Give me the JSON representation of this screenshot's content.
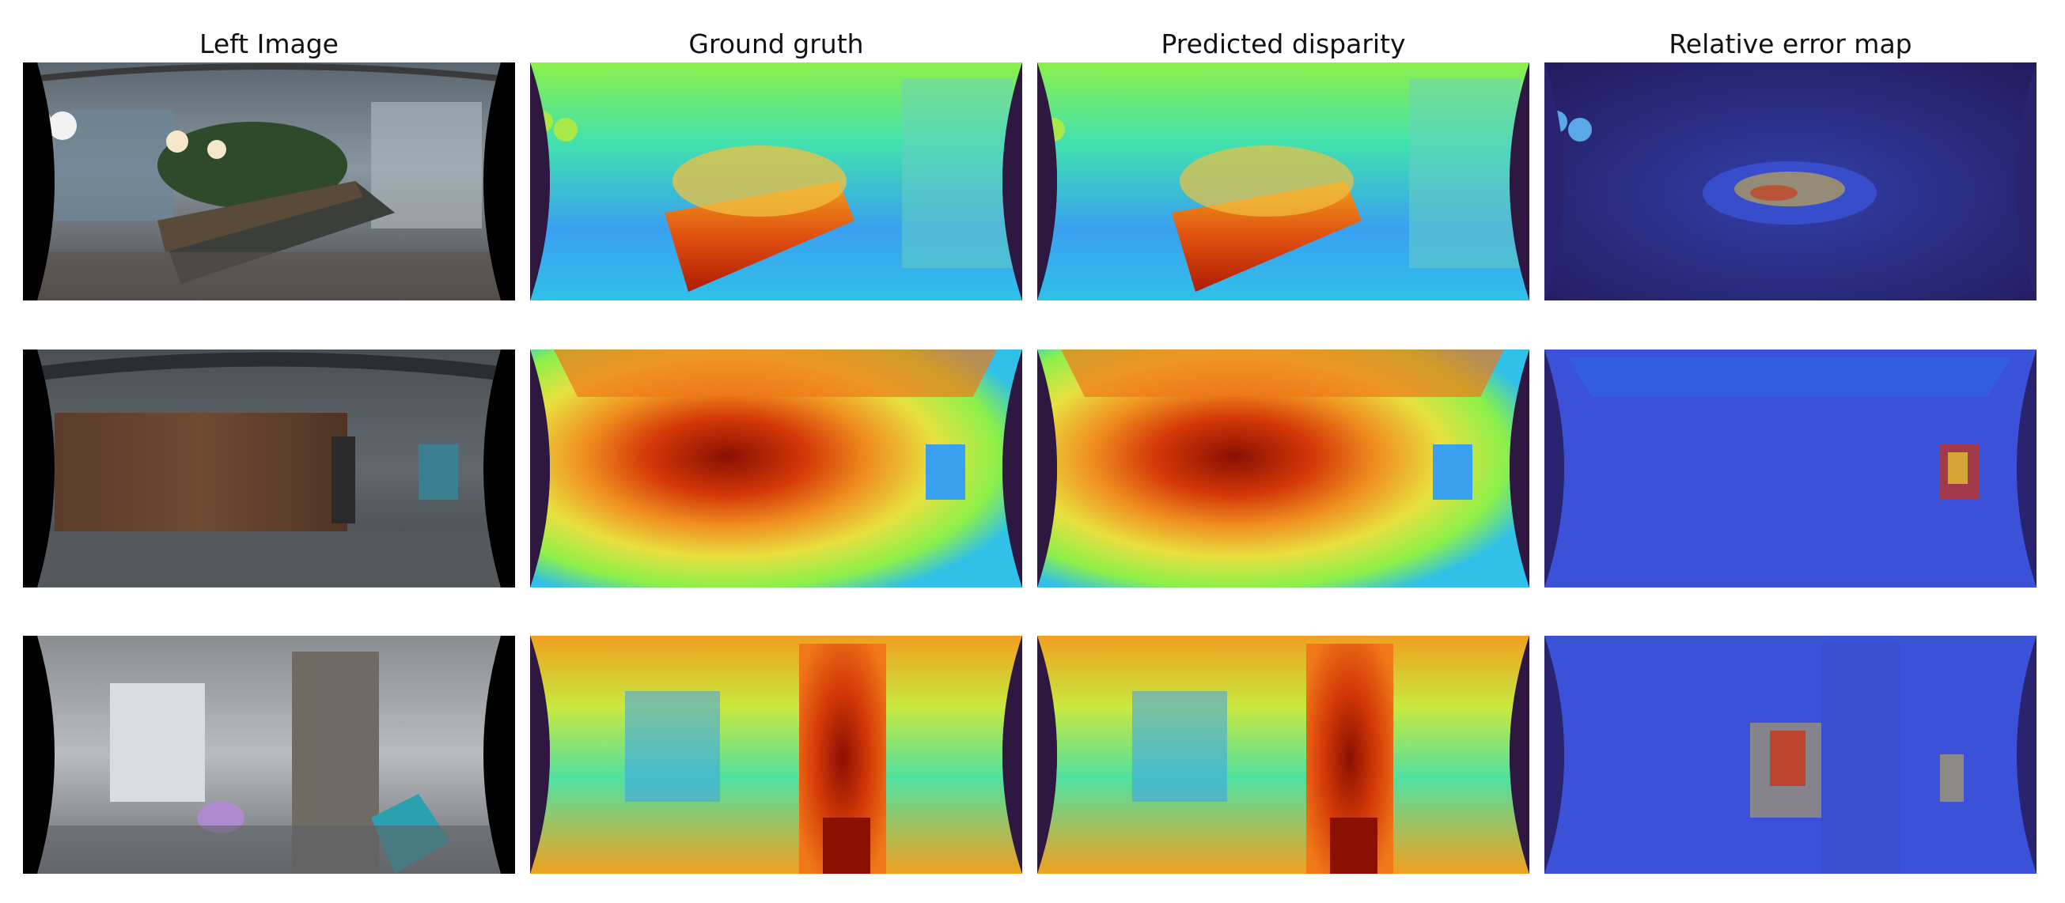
{
  "titles": {
    "left_image": "Left Image",
    "ground_truth": "Ground gruth",
    "predicted": "Predicted disparity",
    "error": "Relative error map"
  },
  "rows": [
    {
      "scene": "office-bar-plants",
      "panels": [
        "left-image",
        "ground-truth",
        "predicted-disparity",
        "relative-error-map"
      ]
    },
    {
      "scene": "corridor-wood-wall",
      "panels": [
        "left-image",
        "ground-truth",
        "predicted-disparity",
        "relative-error-map"
      ]
    },
    {
      "scene": "office-pillar",
      "panels": [
        "left-image",
        "ground-truth",
        "predicted-disparity",
        "relative-error-map"
      ]
    }
  ],
  "colors": {
    "background_black": "#000000",
    "background_purple": "#2e1740",
    "jet_blue": "#3aa0f0",
    "jet_green": "#8cf04a",
    "jet_yellow": "#f0e040",
    "jet_red": "#c62a08",
    "jet_dark_red": "#8a1002",
    "error_dark": "#2a2470",
    "error_blue": "#3b52d8"
  }
}
